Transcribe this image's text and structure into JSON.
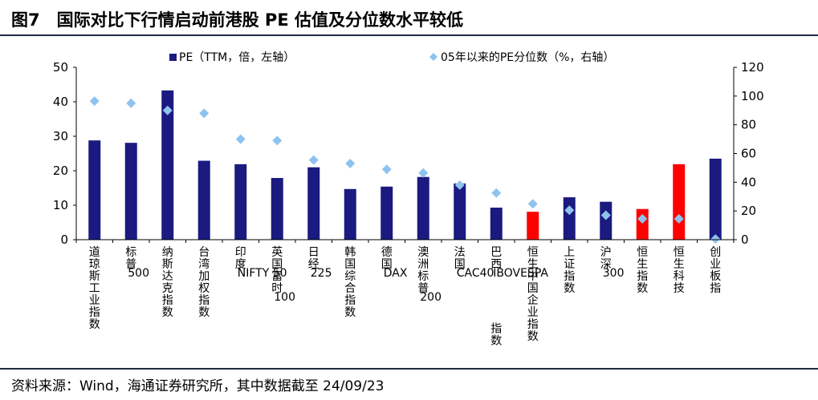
{
  "title": "图7　国际对比下行情启动前港股 PE 估值及分位数水平较低",
  "source": "资料来源：Wind，海通证券研究所，其中数据截至 24/09/23",
  "colors": {
    "bar": "#1a1a80",
    "highlight": "#ff0000",
    "marker": "#8fc3ee",
    "frame": "#1f2a44"
  },
  "chart_data": {
    "type": "bar",
    "categories": [
      "道琼斯工业指数",
      "标普500",
      "纳斯达克指数",
      "台湾加权指数",
      "印度NIFTY 50",
      "英国富时100",
      "日经225",
      "韩国综合指数",
      "德国DAX",
      "澳洲标普200",
      "法国CAC40",
      "巴西IBOVESPA指数",
      "恒生中国企业指数",
      "上证指数",
      "沪深300",
      "恒生指数",
      "恒生科技",
      "创业板指"
    ],
    "highlight_categories": [
      "恒生中国企业指数",
      "恒生指数",
      "恒生科技"
    ],
    "series": [
      {
        "name": "PE（TTM，倍，左轴）",
        "axis": "left",
        "type": "bar",
        "values": [
          28.8,
          28.1,
          43.3,
          22.9,
          21.9,
          17.9,
          21.0,
          14.7,
          15.4,
          18.2,
          16.3,
          9.3,
          8.1,
          12.3,
          11.0,
          8.9,
          21.9,
          23.5
        ]
      },
      {
        "name": "05年以来的PE分位数（%，右轴）",
        "axis": "right",
        "type": "scatter",
        "values": [
          96.5,
          95.0,
          90.0,
          88.0,
          70.0,
          69.0,
          55.5,
          53.0,
          49.0,
          46.5,
          38.0,
          32.5,
          25.0,
          20.5,
          17.0,
          14.5,
          14.5,
          0.5
        ]
      }
    ],
    "yleft": {
      "min": 0,
      "max": 50,
      "ticks": [
        0,
        10,
        20,
        30,
        40,
        50
      ]
    },
    "yright": {
      "min": 0,
      "max": 120,
      "ticks": [
        0,
        20,
        40,
        60,
        80,
        100,
        120
      ]
    },
    "legend_position": "top",
    "grid": false
  }
}
